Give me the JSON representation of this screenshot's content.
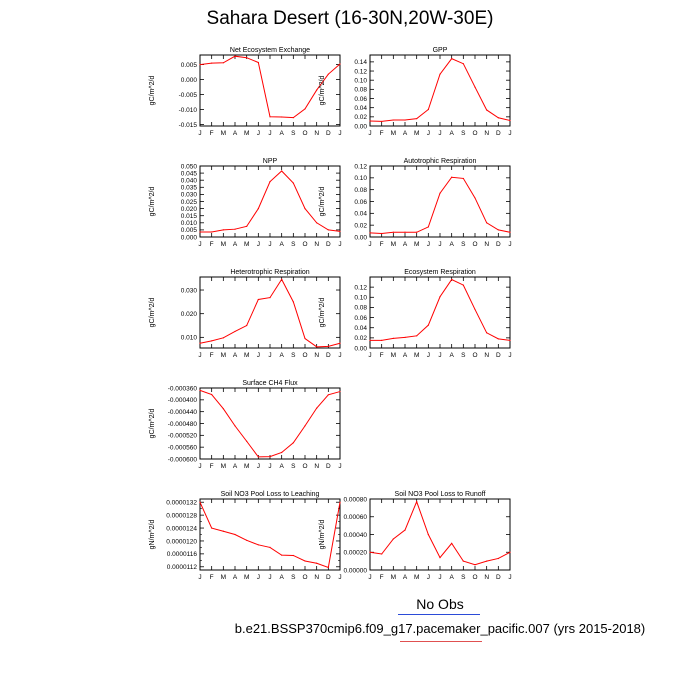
{
  "title": "Sahara Desert (16-30N,20W-30E)",
  "footer": {
    "legend_label": "No Obs",
    "case_label": "b.e21.BSSP370cmip6.f09_g17.pacemaker_pacific.007 (yrs 2015-2018)"
  },
  "colors": {
    "line": "#ff0000",
    "legend_blue": "#2b4bd8",
    "legend_red": "#e05050"
  },
  "chart_data": [
    {
      "type": "line",
      "title": "Net Ecosystem Exchange",
      "ylabel": "gC/m^2/d",
      "categories": [
        "J",
        "F",
        "M",
        "A",
        "M",
        "J",
        "J",
        "A",
        "S",
        "O",
        "N",
        "D",
        "J"
      ],
      "values": [
        0.005,
        0.0055,
        0.0056,
        0.0078,
        0.0073,
        0.0057,
        -0.0124,
        -0.0125,
        -0.0127,
        -0.0098,
        -0.0035,
        0.0018,
        0.0052
      ],
      "ylim": [
        -0.0155,
        0.0082
      ],
      "yticks": [
        0.005,
        0.0,
        -0.005,
        -0.01,
        -0.015
      ],
      "yticklabels": [
        "0.005",
        "0.000",
        "-0.005",
        "-0.010",
        "-0.015"
      ]
    },
    {
      "type": "line",
      "title": "GPP",
      "ylabel": "gC/m^2/d",
      "categories": [
        "J",
        "F",
        "M",
        "A",
        "M",
        "J",
        "J",
        "A",
        "S",
        "O",
        "N",
        "D",
        "J"
      ],
      "values": [
        0.011,
        0.01,
        0.013,
        0.013,
        0.016,
        0.036,
        0.113,
        0.147,
        0.136,
        0.085,
        0.035,
        0.018,
        0.012
      ],
      "ylim": [
        0,
        0.155
      ],
      "yticks": [
        0,
        0.02,
        0.04,
        0.06,
        0.08,
        0.1,
        0.12,
        0.14
      ],
      "yticklabels": [
        "0.00",
        "0.02",
        "0.04",
        "0.06",
        "0.08",
        "0.10",
        "0.12",
        "0.14"
      ]
    },
    {
      "type": "line",
      "title": "NPP",
      "ylabel": "gC/m^2/d",
      "categories": [
        "J",
        "F",
        "M",
        "A",
        "M",
        "J",
        "J",
        "A",
        "S",
        "O",
        "N",
        "D",
        "J"
      ],
      "values": [
        0.0035,
        0.0035,
        0.005,
        0.0055,
        0.0075,
        0.02,
        0.039,
        0.0465,
        0.038,
        0.02,
        0.01,
        0.005,
        0.004
      ],
      "ylim": [
        0,
        0.05
      ],
      "yticks": [
        0,
        0.005,
        0.01,
        0.015,
        0.02,
        0.025,
        0.03,
        0.035,
        0.04,
        0.045,
        0.05
      ],
      "yticklabels": [
        "0.000",
        "0.005",
        "0.010",
        "0.015",
        "0.020",
        "0.025",
        "0.030",
        "0.035",
        "0.040",
        "0.045",
        "0.050"
      ]
    },
    {
      "type": "line",
      "title": "Autotrophic Respiration",
      "ylabel": "gC/m^2/d",
      "categories": [
        "J",
        "F",
        "M",
        "A",
        "M",
        "J",
        "J",
        "A",
        "S",
        "O",
        "N",
        "D",
        "J"
      ],
      "values": [
        0.007,
        0.006,
        0.008,
        0.008,
        0.008,
        0.017,
        0.074,
        0.101,
        0.099,
        0.066,
        0.024,
        0.012,
        0.008
      ],
      "ylim": [
        0,
        0.12
      ],
      "yticks": [
        0,
        0.02,
        0.04,
        0.06,
        0.08,
        0.1,
        0.12
      ],
      "yticklabels": [
        "0.00",
        "0.02",
        "0.04",
        "0.06",
        "0.08",
        "0.10",
        "0.12"
      ]
    },
    {
      "type": "line",
      "title": "Heterotrophic Respiration",
      "ylabel": "gC/m^2/d",
      "categories": [
        "J",
        "F",
        "M",
        "A",
        "M",
        "J",
        "J",
        "A",
        "S",
        "O",
        "N",
        "D",
        "J"
      ],
      "values": [
        0.0075,
        0.0085,
        0.0098,
        0.0125,
        0.015,
        0.026,
        0.0268,
        0.0345,
        0.025,
        0.0095,
        0.006,
        0.0062,
        0.0075
      ],
      "ylim": [
        0.0055,
        0.0355
      ],
      "yticks": [
        0.01,
        0.02,
        0.03
      ],
      "yticklabels": [
        "0.010",
        "0.020",
        "0.030"
      ]
    },
    {
      "type": "line",
      "title": "Ecosystem Respiration",
      "ylabel": "gC/m^2/d",
      "categories": [
        "J",
        "F",
        "M",
        "A",
        "M",
        "J",
        "J",
        "A",
        "S",
        "O",
        "N",
        "D",
        "J"
      ],
      "values": [
        0.015,
        0.015,
        0.019,
        0.021,
        0.024,
        0.045,
        0.101,
        0.135,
        0.124,
        0.076,
        0.03,
        0.018,
        0.015
      ],
      "ylim": [
        0,
        0.14
      ],
      "yticks": [
        0,
        0.02,
        0.04,
        0.06,
        0.08,
        0.1,
        0.12
      ],
      "yticklabels": [
        "0.00",
        "0.02",
        "0.04",
        "0.06",
        "0.08",
        "0.10",
        "0.12"
      ]
    },
    {
      "type": "line",
      "title": "Surface CH4 Flux",
      "ylabel": "gC/m^2/d",
      "categories": [
        "J",
        "F",
        "M",
        "A",
        "M",
        "J",
        "J",
        "A",
        "S",
        "O",
        "N",
        "D",
        "J"
      ],
      "values": [
        -0.000368,
        -0.000382,
        -0.00043,
        -0.000488,
        -0.00054,
        -0.000593,
        -0.000592,
        -0.000578,
        -0.000545,
        -0.000488,
        -0.000428,
        -0.000383,
        -0.000372
      ],
      "ylim": [
        -0.0006,
        -0.00036
      ],
      "yticks": [
        -0.00036,
        -0.0004,
        -0.00044,
        -0.00048,
        -0.00052,
        -0.00056,
        -0.0006
      ],
      "yticklabels": [
        "-0.000360",
        "-0.000400",
        "-0.000440",
        "-0.000480",
        "-0.000520",
        "-0.000560",
        "-0.000600"
      ]
    },
    {
      "type": "line",
      "title": "Soil NO3 Pool Loss to Leaching",
      "ylabel": "gN/m^2/d",
      "categories": [
        "J",
        "F",
        "M",
        "A",
        "M",
        "J",
        "J",
        "A",
        "S",
        "O",
        "N",
        "D",
        "J"
      ],
      "values": [
        1.32e-05,
        1.24e-05,
        1.23e-05,
        1.22e-05,
        1.202e-05,
        1.188e-05,
        1.18e-05,
        1.156e-05,
        1.155e-05,
        1.138e-05,
        1.131e-05,
        1.118e-05,
        1.32e-05
      ],
      "ylim": [
        1.11e-05,
        1.33e-05
      ],
      "yticks": [
        1.12e-05,
        1.16e-05,
        1.2e-05,
        1.24e-05,
        1.28e-05,
        1.32e-05
      ],
      "yticklabels": [
        "0.0000112",
        "0.0000116",
        "0.0000120",
        "0.0000124",
        "0.0000128",
        "0.0000132"
      ],
      "yticks_minor": [
        1.14e-05,
        1.18e-05,
        1.22e-05,
        1.26e-05,
        1.3e-05
      ]
    },
    {
      "type": "line",
      "title": "Soil NO3 Pool Loss to Runoff",
      "ylabel": "gN/m^2/d",
      "categories": [
        "J",
        "F",
        "M",
        "A",
        "M",
        "J",
        "J",
        "A",
        "S",
        "O",
        "N",
        "D",
        "J"
      ],
      "values": [
        0.0002,
        0.00018,
        0.00035,
        0.00045,
        0.00077,
        0.0004,
        0.00014,
        0.0003,
        0.0001,
        6e-05,
        0.0001,
        0.00013,
        0.0002
      ],
      "ylim": [
        0,
        0.0008
      ],
      "yticks": [
        0,
        0.0002,
        0.0004,
        0.0006,
        0.0008
      ],
      "yticklabels": [
        "0.00000",
        "0.00020",
        "0.00040",
        "0.00060",
        "0.00080"
      ]
    }
  ]
}
